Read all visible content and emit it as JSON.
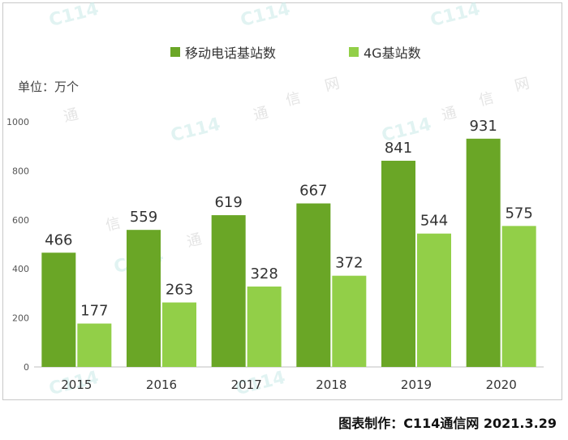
{
  "chart_data": {
    "type": "bar",
    "categories": [
      "2015",
      "2016",
      "2017",
      "2018",
      "2019",
      "2020"
    ],
    "series": [
      {
        "name": "移动电话基站数",
        "values": [
          466,
          559,
          619,
          667,
          841,
          931
        ],
        "color": "#6aa626"
      },
      {
        "name": "4G基站数",
        "values": [
          177,
          263,
          328,
          372,
          544,
          575
        ],
        "color": "#92cf48"
      }
    ],
    "ylim": [
      0,
      1000
    ],
    "yticks": [
      0,
      200,
      400,
      600,
      800,
      1000
    ],
    "ylabel": "单位：万个",
    "grid": false,
    "legend": "top-center"
  },
  "watermark_texts": {
    "logo": "C114",
    "cn_chars": [
      "通",
      "信",
      "网"
    ]
  },
  "footer": "图表制作：C114通信网  2021.3.29"
}
